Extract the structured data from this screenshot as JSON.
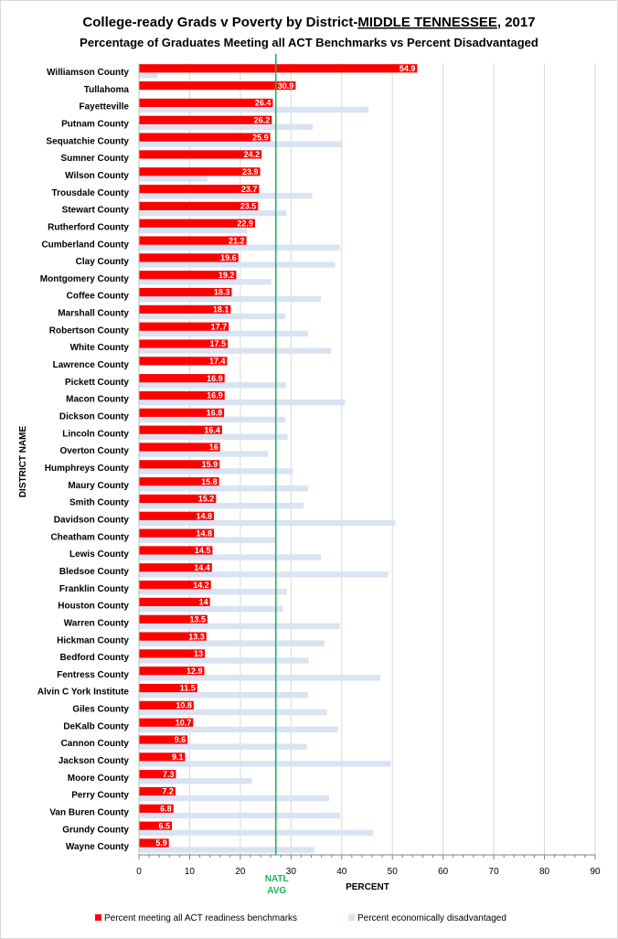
{
  "chart_data": {
    "type": "bar",
    "orientation": "horizontal",
    "title_parts": [
      "College-ready Grads v Poverty by District-",
      "MIDDLE TENNESSEE",
      ", 2017"
    ],
    "subtitle": "Percentage of Graduates Meeting all ACT Benchmarks vs Percent Disadvantaged",
    "xlabel": "PERCENT",
    "ylabel": "DISTRICT NAME",
    "xlim": [
      0,
      90
    ],
    "xticks": [
      0,
      10,
      20,
      30,
      40,
      50,
      60,
      70,
      80,
      90
    ],
    "reference_line": {
      "value": 27,
      "label_line1": "NATL",
      "label_line2": "AVG",
      "color": "#1ab35a"
    },
    "legend_position": "bottom",
    "categories": [
      "Williamson County",
      "Tullahoma",
      "Fayetteville",
      "Putnam County",
      "Sequatchie County",
      "Sumner County",
      "Wilson County",
      "Trousdale County",
      "Stewart County",
      "Rutherford County",
      "Cumberland County",
      "Clay County",
      "Montgomery County",
      "Coffee County",
      "Marshall County",
      "Robertson County",
      "White County",
      "Lawrence County",
      "Pickett County",
      "Macon County",
      "Dickson County",
      "Lincoln County",
      "Overton County",
      "Humphreys County",
      "Maury County",
      "Smith County",
      "Davidson County",
      "Cheatham County",
      "Lewis County",
      "Bledsoe County",
      "Franklin County",
      "Houston County",
      "Warren County",
      "Hickman County",
      "Bedford County",
      "Fentress County",
      "Alvin C York Institute",
      "Giles County",
      "DeKalb County",
      "Cannon County",
      "Jackson County",
      "Moore County",
      "Perry County",
      "Van Buren County",
      "Grundy County",
      "Wayne County"
    ],
    "series": [
      {
        "name": "Percent meeting all ACT readiness benchmarks",
        "color": "#ff0000",
        "values": [
          54.9,
          30.9,
          26.4,
          26.2,
          25.9,
          24.2,
          23.9,
          23.7,
          23.5,
          22.9,
          21.2,
          19.6,
          19.2,
          18.3,
          18.1,
          17.7,
          17.5,
          17.4,
          16.9,
          16.9,
          16.8,
          16.4,
          16,
          15.9,
          15.8,
          15.2,
          14.8,
          14.8,
          14.5,
          14.4,
          14.2,
          14,
          13.5,
          13.3,
          13,
          12.9,
          11.5,
          10.8,
          10.7,
          9.6,
          9.1,
          7.3,
          7.2,
          6.8,
          6.5,
          5.9
        ],
        "labels": [
          "54.9",
          "30.9",
          "26.4",
          "26.2",
          "25.9",
          "24.2",
          "23.9",
          "23.7",
          "23.5",
          "22.9",
          "21.2",
          "19.6",
          "19.2",
          "18.3",
          "18.1",
          "17.7",
          "17.5",
          "17.4",
          "16.9",
          "16.9",
          "16.8",
          "16.4",
          "16",
          "15.9",
          "15.8",
          "15.2",
          "14.8",
          "14.8",
          "14.5",
          "14.4",
          "14.2",
          "14",
          "13.5",
          "13.3",
          "13",
          "12.9",
          "11.5",
          "10.8",
          "10.7",
          "9.6",
          "9.1",
          "7.3",
          "7.2",
          "6.8",
          "6.5",
          "5.9"
        ]
      },
      {
        "name": "Percent economically disadvantaged",
        "color": "#dae3f3",
        "values": [
          3.7,
          0,
          45.3,
          34.3,
          39.9,
          0,
          13.5,
          34.2,
          29.1,
          21.3,
          39.6,
          38.7,
          26.1,
          35.9,
          28.9,
          33.4,
          37.9,
          0,
          29,
          40.6,
          28.9,
          29.3,
          25.5,
          30.4,
          33.4,
          32.5,
          50.6,
          26.9,
          35.9,
          49.2,
          29.2,
          28.4,
          39.6,
          36.6,
          33.5,
          47.6,
          33.4,
          37.1,
          39.3,
          33.1,
          49.7,
          22.3,
          37.5,
          39.7,
          46.2,
          34.6
        ]
      }
    ]
  }
}
